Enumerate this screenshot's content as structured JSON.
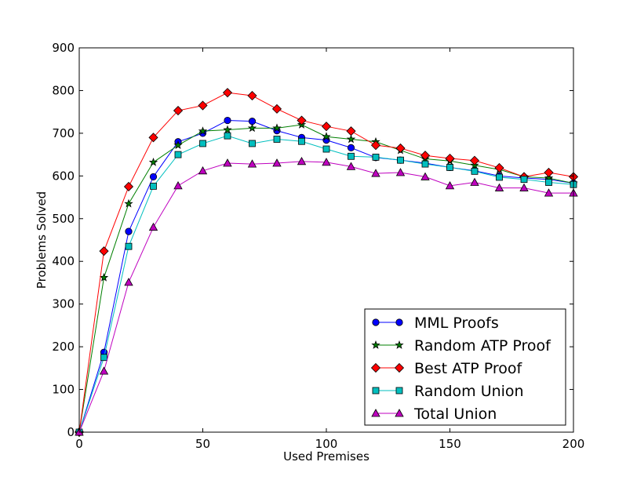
{
  "chart_data": {
    "type": "line",
    "title": "",
    "xlabel": "Used Premises",
    "ylabel": "Problems Solved",
    "xlim": [
      0,
      200
    ],
    "ylim": [
      0,
      900
    ],
    "xticks": [
      0,
      50,
      100,
      150,
      200
    ],
    "yticks": [
      0,
      100,
      200,
      300,
      400,
      500,
      600,
      700,
      800,
      900
    ],
    "grid": false,
    "legend_position": "lower-right",
    "x": [
      0,
      10,
      20,
      30,
      40,
      50,
      60,
      70,
      80,
      90,
      100,
      110,
      120,
      130,
      140,
      150,
      160,
      170,
      180,
      190,
      200
    ],
    "series": [
      {
        "name": "MML Proofs",
        "color": "#0000ff",
        "marker": "circle",
        "values": [
          0,
          187,
          470,
          598,
          680,
          700,
          730,
          728,
          706,
          690,
          684,
          666,
          643,
          637,
          630,
          620,
          612,
          600,
          595,
          592,
          583
        ]
      },
      {
        "name": "Random ATP Proof",
        "color": "#007f00",
        "marker": "star",
        "values": [
          0,
          362,
          535,
          632,
          672,
          705,
          708,
          712,
          712,
          720,
          692,
          686,
          680,
          660,
          640,
          635,
          625,
          615,
          598,
          595,
          583
        ]
      },
      {
        "name": "Best ATP Proof",
        "color": "#ff0000",
        "marker": "diamond",
        "values": [
          0,
          424,
          575,
          690,
          753,
          765,
          795,
          788,
          757,
          730,
          716,
          705,
          672,
          665,
          648,
          641,
          636,
          619,
          598,
          608,
          598
        ]
      },
      {
        "name": "Random Union",
        "color": "#00bfbf",
        "marker": "square",
        "values": [
          0,
          175,
          435,
          576,
          650,
          676,
          694,
          676,
          686,
          681,
          663,
          646,
          644,
          637,
          628,
          620,
          611,
          597,
          592,
          585,
          580
        ]
      },
      {
        "name": "Total Union",
        "color": "#bf00bf",
        "marker": "triangle",
        "values": [
          0,
          143,
          351,
          480,
          577,
          612,
          630,
          628,
          630,
          634,
          632,
          622,
          606,
          608,
          598,
          577,
          585,
          572,
          572,
          560,
          560
        ]
      }
    ]
  }
}
